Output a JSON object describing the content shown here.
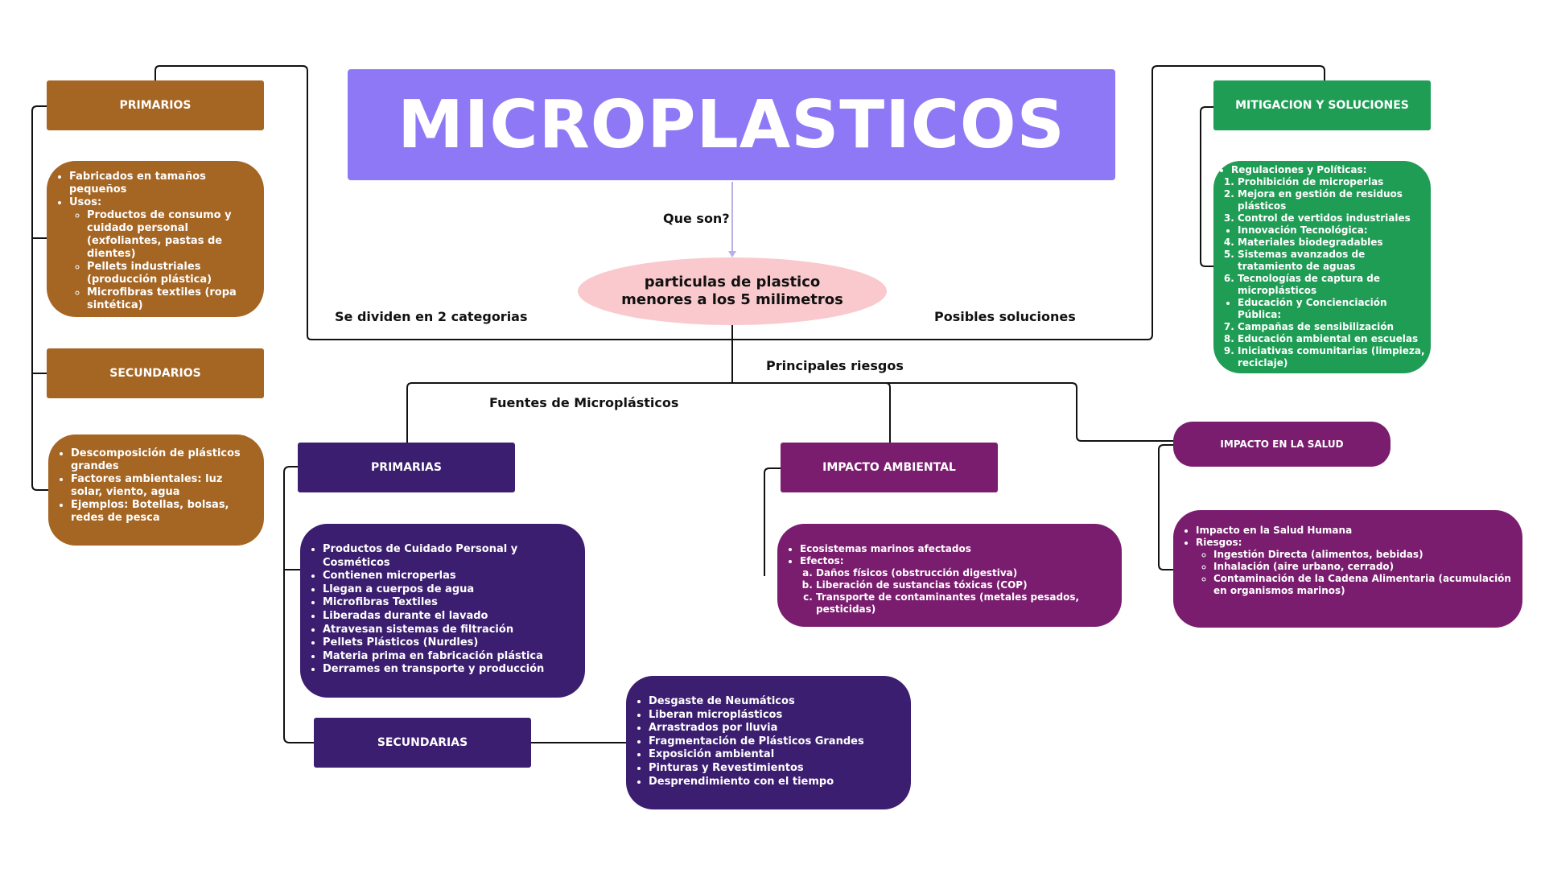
{
  "title": "MICROPLASTICOS",
  "que_son": "Que son?",
  "definition": "particulas de plastico menores a los 5 milimetros",
  "labels": {
    "categorias": "Se dividen en 2 categorias",
    "soluciones": "Posibles soluciones",
    "riesgos": "Principales riesgos",
    "fuentes": "Fuentes de Microplásticos"
  },
  "primarios": {
    "header": "PRIMARIOS",
    "item1": "Fabricados en tamaños pequeños",
    "item2": "Usos:",
    "sub": [
      "Productos de consumo y cuidado personal (exfoliantes, pastas de dientes)",
      "Pellets industriales (producción plástica)",
      "Microfibras textiles (ropa sintética)"
    ]
  },
  "secundarios": {
    "header": "SECUNDARIOS",
    "items": [
      "Descomposición de plásticos grandes",
      "Factores ambientales: luz solar, viento, agua",
      "Ejemplos: Botellas, bolsas, redes de pesca"
    ]
  },
  "mitigacion": {
    "header": "MITIGACION Y SOLUCIONES",
    "groups": [
      {
        "title": "Regulaciones y Políticas:",
        "items": [
          "Prohibición de microperlas",
          "Mejora en gestión de residuos plásticos",
          "Control de vertidos industriales"
        ]
      },
      {
        "title": "Innovación Tecnológica:",
        "items": [
          "Materiales biodegradables",
          "Sistemas avanzados de tratamiento de aguas",
          "Tecnologías de captura de microplásticos"
        ]
      },
      {
        "title": "Educación y Concienciación Pública:",
        "items": [
          "Campañas de sensibilización",
          "Educación ambiental en escuelas",
          "Iniciativas comunitarias (limpieza, reciclaje)"
        ]
      }
    ]
  },
  "fuentes_primarias": {
    "header": "PRIMARIAS",
    "items": [
      "Productos de Cuidado Personal y Cosméticos",
      "Contienen microperlas",
      "Llegan a cuerpos de agua",
      "Microfibras Textiles",
      "Liberadas durante el lavado",
      "Atravesan sistemas de filtración",
      "Pellets Plásticos (Nurdles)",
      "Materia prima en fabricación plástica",
      "Derrames en transporte y producción"
    ]
  },
  "fuentes_secundarias": {
    "header": "SECUNDARIAS",
    "items": [
      "Desgaste de Neumáticos",
      "Liberan microplásticos",
      "Arrastrados por lluvia",
      "Fragmentación de Plásticos Grandes",
      "Exposición ambiental",
      "Pinturas y Revestimientos",
      "Desprendimiento con el tiempo"
    ]
  },
  "impacto_ambiental": {
    "header": "IMPACTO AMBIENTAL",
    "item1": "Ecosistemas marinos afectados",
    "item2": "Efectos:",
    "effects": [
      "Daños físicos (obstrucción digestiva)",
      "Liberación de sustancias tóxicas (COP)",
      "Transporte de contaminantes (metales pesados, pesticidas)"
    ]
  },
  "impacto_salud": {
    "header": "IMPACTO EN LA SALUD",
    "item1": "Impacto en la Salud Humana",
    "item2": "Riesgos:",
    "risks": [
      "Ingestión Directa (alimentos, bebidas)",
      "Inhalación (aire urbano, cerrado)",
      "Contaminación de la Cadena Alimentaria (acumulación en organismos marinos)"
    ]
  },
  "colors": {
    "title": "#8f78f6",
    "brown": "#a56523",
    "green": "#1f9d55",
    "indigo": "#3b1e6f",
    "plum": "#7a1d6e",
    "pink": "#f9c9cd"
  }
}
